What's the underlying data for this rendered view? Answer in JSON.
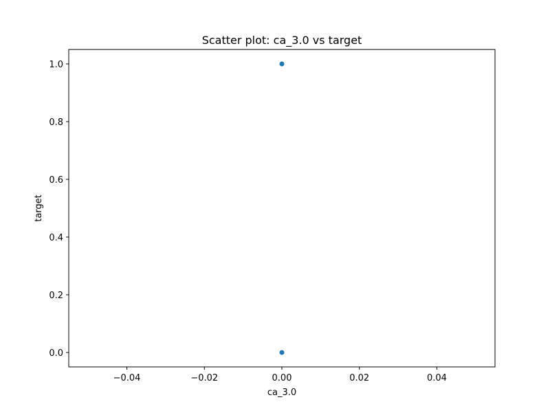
{
  "chart_data": {
    "type": "scatter",
    "title": "Scatter plot: ca_3.0 vs target",
    "xlabel": "ca_3.0",
    "ylabel": "target",
    "xlim": [
      -0.055,
      0.055
    ],
    "ylim": [
      -0.05,
      1.05
    ],
    "xticks": [
      -0.04,
      -0.02,
      0.0,
      0.02,
      0.04
    ],
    "xtick_labels": [
      "−0.04",
      "−0.02",
      "0.00",
      "0.02",
      "0.04"
    ],
    "yticks": [
      0.0,
      0.2,
      0.4,
      0.6,
      0.8,
      1.0
    ],
    "ytick_labels": [
      "0.0",
      "0.2",
      "0.4",
      "0.6",
      "0.8",
      "1.0"
    ],
    "grid": false,
    "series": [
      {
        "color": "#1f77b4",
        "points": [
          {
            "x": 0.0,
            "y": 1.0
          },
          {
            "x": 0.0,
            "y": 0.0
          }
        ]
      }
    ]
  }
}
